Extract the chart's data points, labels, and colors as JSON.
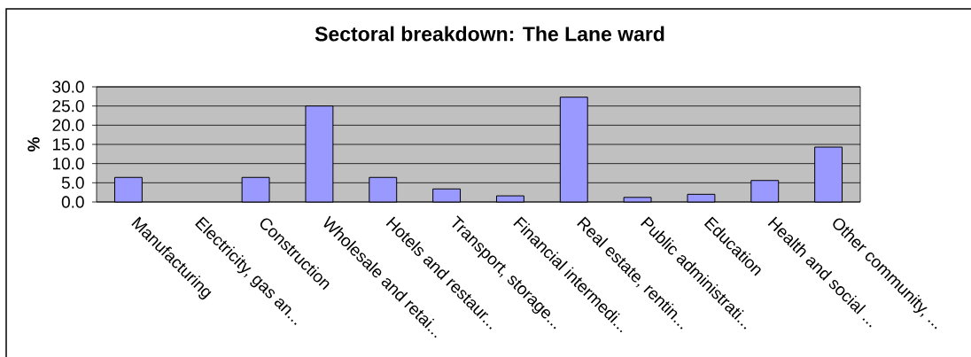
{
  "chart_data": {
    "type": "bar",
    "title": "Sectoral breakdown: The Lane ward",
    "ylabel": "%",
    "categories": [
      "Manufacturing",
      "Electricity, gas an...",
      "Construction",
      "Wholesale and retai...",
      "Hotels and restaur...",
      "Transport, storage...",
      "Financial intermedi...",
      "Real estate, rentin...",
      "Public administrati...",
      "Education",
      "Health and social ...",
      "Other community, ..."
    ],
    "values": [
      6.4,
      0,
      6.4,
      25.0,
      6.4,
      3.4,
      1.6,
      27.3,
      1.2,
      2.0,
      5.6,
      14.3
    ],
    "color": "#9999ff",
    "ylim": [
      0,
      30
    ],
    "yticks": [
      {
        "value": 0,
        "label": "0.0"
      },
      {
        "value": 5,
        "label": "5.0"
      },
      {
        "value": 10,
        "label": "10.0"
      },
      {
        "value": 15,
        "label": "15.0"
      },
      {
        "value": 20,
        "label": "20.0"
      },
      {
        "value": 25,
        "label": "25.0"
      },
      {
        "value": 30,
        "label": "30.0"
      }
    ],
    "grid": "y"
  }
}
